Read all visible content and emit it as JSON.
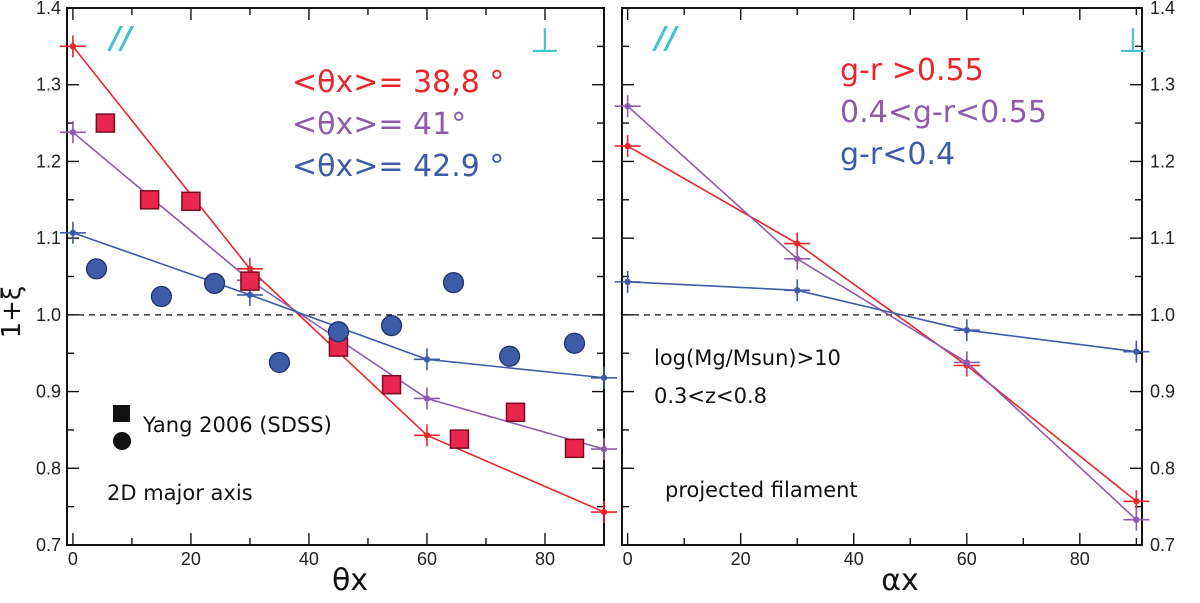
{
  "chart_data": [
    {
      "type": "scatter",
      "panel": "left",
      "xlabel": "θx",
      "ylabel": "1+ξ",
      "xlim": [
        -1,
        90
      ],
      "ylim": [
        0.7,
        1.4
      ],
      "xticks": [
        0,
        20,
        40,
        60,
        80
      ],
      "yticks": [
        0.7,
        0.8,
        0.9,
        1.0,
        1.1,
        1.2,
        1.3,
        1.4
      ],
      "ytick_labels": [
        "0.7",
        "0.8",
        "0.9",
        "1.0",
        "1.1",
        "1.2",
        "1.3",
        "1.4"
      ],
      "reference_line": 1.0,
      "corner_labels": {
        "left": "//",
        "right": "⊥"
      },
      "annotations": [
        "<θx>= 38,8 °",
        "<θx>= 41°",
        "<θx>= 42.9 °"
      ],
      "legend": {
        "square": "Yang 2006 (SDSS)",
        "circle": "",
        "note": "2D major axis"
      },
      "series": [
        {
          "name": "g-r >0.55",
          "color": "#e8262c",
          "marker": "errorbar",
          "x": [
            0,
            30,
            60,
            90
          ],
          "y": [
            1.35,
            1.06,
            0.843,
            0.743
          ]
        },
        {
          "name": "0.4<g-r<0.55",
          "color": "#8e5bab",
          "marker": "errorbar",
          "x": [
            0,
            30,
            60,
            90
          ],
          "y": [
            1.238,
            1.045,
            0.891,
            0.825
          ]
        },
        {
          "name": "g-r<0.4",
          "color": "#3e5ba8",
          "marker": "errorbar",
          "x": [
            0,
            30,
            60,
            90
          ],
          "y": [
            1.107,
            1.026,
            0.942,
            0.918
          ]
        },
        {
          "name": "Yang 2006 (SDSS) squares",
          "color": "#e8264e",
          "marker": "square",
          "x": [
            5.5,
            13,
            20,
            30,
            45,
            54,
            65.5,
            75,
            85
          ],
          "y": [
            1.25,
            1.15,
            1.148,
            1.044,
            0.958,
            0.909,
            0.838,
            0.873,
            0.826
          ]
        },
        {
          "name": "Yang 2006 (SDSS) circles",
          "color": "#3e5ba8",
          "marker": "circle",
          "x": [
            4,
            15,
            24,
            35,
            45,
            54,
            64.5,
            74,
            85
          ],
          "y": [
            1.06,
            1.024,
            1.041,
            0.938,
            0.978,
            0.986,
            1.042,
            0.946,
            0.963
          ]
        }
      ]
    },
    {
      "type": "line",
      "panel": "right",
      "xlabel": "αx",
      "ylabel": "",
      "xlim": [
        -1,
        91
      ],
      "ylim": [
        0.7,
        1.4
      ],
      "xticks": [
        0,
        20,
        40,
        60,
        80
      ],
      "yticks": [
        0.7,
        0.8,
        0.9,
        1.0,
        1.1,
        1.2,
        1.3,
        1.4
      ],
      "ytick_labels": [
        "0.7",
        "0.8",
        "0.9",
        "1.0",
        "1.1",
        "1.2",
        "1.3",
        "1.4"
      ],
      "reference_line": 1.0,
      "corner_labels": {
        "left": "//",
        "right": "⊥"
      },
      "annotations": [
        "log(Mg/Msun)>10",
        "0.3<z<0.8",
        "projected filament"
      ],
      "series": [
        {
          "name": "g-r >0.55",
          "color": "#e8262c",
          "marker": "errorbar",
          "x": [
            0,
            30,
            60,
            90
          ],
          "y": [
            1.22,
            1.093,
            0.934,
            0.757
          ]
        },
        {
          "name": "0.4<g-r<0.55",
          "color": "#8e5bab",
          "marker": "errorbar",
          "x": [
            0,
            30,
            60,
            90
          ],
          "y": [
            1.272,
            1.073,
            0.938,
            0.733
          ]
        },
        {
          "name": "g-r<0.4",
          "color": "#3e5ba8",
          "marker": "errorbar",
          "x": [
            0,
            30,
            60,
            90
          ],
          "y": [
            1.043,
            1.032,
            0.98,
            0.952
          ]
        }
      ]
    }
  ],
  "colors": {
    "red": "#e8262c",
    "purple": "#8e5bab",
    "blue": "#3e5ba8",
    "cyan": "#45c2cc",
    "square": "#e8264e"
  }
}
